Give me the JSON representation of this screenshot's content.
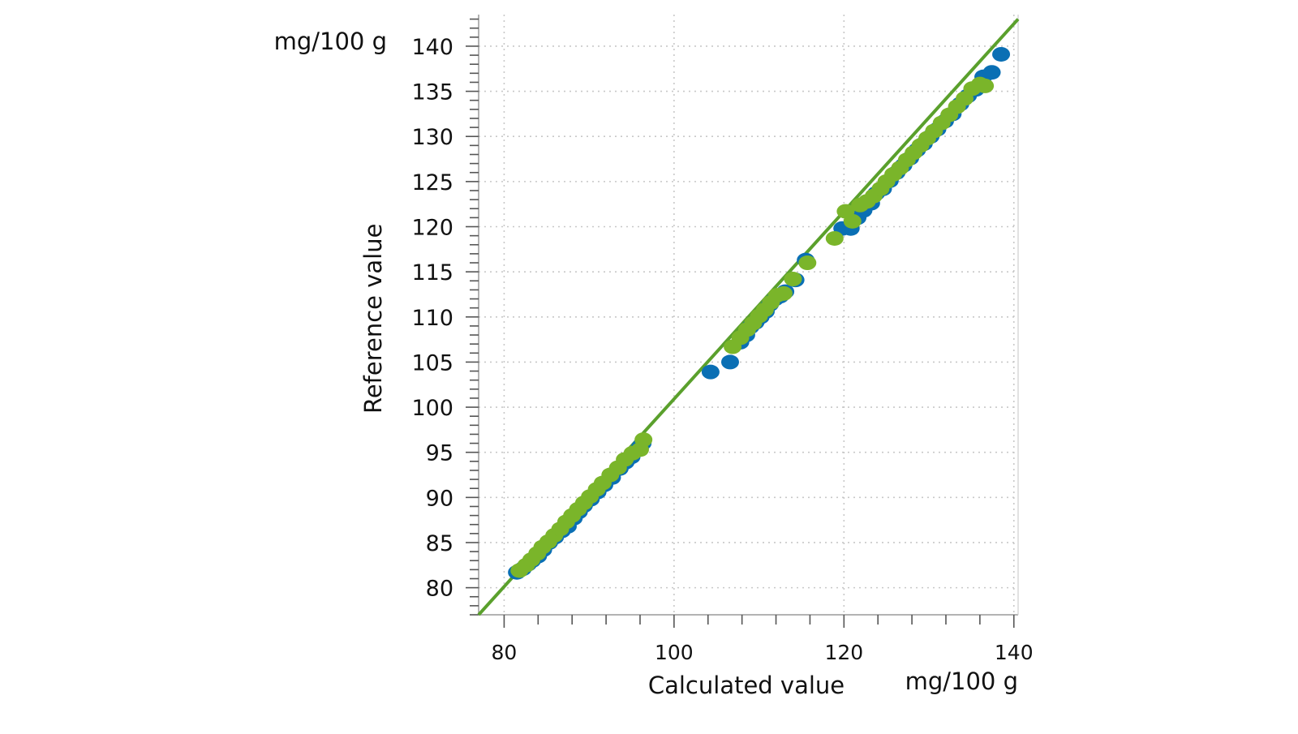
{
  "chart_data": {
    "type": "scatter",
    "title": "",
    "xlabel": "Calculated value",
    "ylabel": "Reference value",
    "x_unit": "mg/100 g",
    "y_unit": "mg/100 g",
    "xlim": [
      77,
      140.5
    ],
    "ylim": [
      77,
      143.5
    ],
    "x_ticks": [
      80,
      100,
      120,
      140
    ],
    "y_ticks": [
      80,
      85,
      90,
      95,
      100,
      105,
      110,
      115,
      120,
      125,
      130,
      135,
      140
    ],
    "grid": true,
    "legend": "none",
    "colors": {
      "calibration": "#0a6fb4",
      "validation": "#7ab52a",
      "fit_line": "#5aa02c",
      "grid": "#c8c8c8",
      "axis": "#9a9a9a"
    },
    "fit_line": {
      "from": [
        77,
        77
      ],
      "to": [
        140.5,
        143
      ]
    },
    "series": [
      {
        "points": [
          [
            81.5,
            81.7
          ],
          [
            82.2,
            82.1
          ],
          [
            82.8,
            82.6
          ],
          [
            83.3,
            83.0
          ],
          [
            84.0,
            83.5
          ],
          [
            84.6,
            84.2
          ],
          [
            85.3,
            85.0
          ],
          [
            86.0,
            85.6
          ],
          [
            86.8,
            86.3
          ],
          [
            87.5,
            86.8
          ],
          [
            88.2,
            87.7
          ],
          [
            88.8,
            88.4
          ],
          [
            89.4,
            89.1
          ],
          [
            90.2,
            89.8
          ],
          [
            91.0,
            90.6
          ],
          [
            91.8,
            91.4
          ],
          [
            92.7,
            92.2
          ],
          [
            93.6,
            93.2
          ],
          [
            94.3,
            93.9
          ],
          [
            95.0,
            94.5
          ],
          [
            96.0,
            95.6
          ],
          [
            96.3,
            96.0
          ],
          [
            104.3,
            103.9
          ],
          [
            106.6,
            105.0
          ],
          [
            107.8,
            107.2
          ],
          [
            108.5,
            108.0
          ],
          [
            109.0,
            108.9
          ],
          [
            109.6,
            109.4
          ],
          [
            110.2,
            110.0
          ],
          [
            110.8,
            110.6
          ],
          [
            111.3,
            111.4
          ],
          [
            111.9,
            112.0
          ],
          [
            112.5,
            112.3
          ],
          [
            113.1,
            112.8
          ],
          [
            114.3,
            114.1
          ],
          [
            115.5,
            116.3
          ],
          [
            119.8,
            119.8
          ],
          [
            120.8,
            119.8
          ],
          [
            121.6,
            121.0
          ],
          [
            122.3,
            121.8
          ],
          [
            123.2,
            122.6
          ],
          [
            123.8,
            123.7
          ],
          [
            124.6,
            124.2
          ],
          [
            125.4,
            125.1
          ],
          [
            126.2,
            126.0
          ],
          [
            127.0,
            126.8
          ],
          [
            127.8,
            127.6
          ],
          [
            128.6,
            128.5
          ],
          [
            129.4,
            129.2
          ],
          [
            130.2,
            130.0
          ],
          [
            131.0,
            130.8
          ],
          [
            131.9,
            131.7
          ],
          [
            132.8,
            132.5
          ],
          [
            133.7,
            133.6
          ],
          [
            134.6,
            134.5
          ],
          [
            135.5,
            135.2
          ],
          [
            136.4,
            136.6
          ],
          [
            137.4,
            137.1
          ],
          [
            138.5,
            139.1
          ]
        ]
      },
      {
        "points": [
          [
            81.8,
            81.9
          ],
          [
            82.6,
            82.5
          ],
          [
            83.2,
            83.1
          ],
          [
            83.9,
            83.8
          ],
          [
            84.5,
            84.5
          ],
          [
            85.2,
            85.1
          ],
          [
            85.9,
            85.8
          ],
          [
            86.6,
            86.5
          ],
          [
            87.3,
            87.3
          ],
          [
            88.0,
            88.0
          ],
          [
            88.7,
            88.7
          ],
          [
            89.4,
            89.4
          ],
          [
            90.1,
            90.1
          ],
          [
            90.9,
            90.9
          ],
          [
            91.6,
            91.6
          ],
          [
            92.5,
            92.5
          ],
          [
            93.4,
            93.3
          ],
          [
            94.2,
            94.2
          ],
          [
            95.1,
            94.9
          ],
          [
            96.0,
            95.3
          ],
          [
            96.4,
            96.4
          ],
          [
            106.9,
            106.7
          ],
          [
            107.8,
            107.7
          ],
          [
            108.6,
            108.6
          ],
          [
            109.3,
            109.3
          ],
          [
            110.0,
            110.1
          ],
          [
            110.7,
            110.8
          ],
          [
            111.4,
            111.6
          ],
          [
            112.1,
            112.4
          ],
          [
            112.9,
            112.6
          ],
          [
            114.0,
            114.2
          ],
          [
            115.7,
            116.0
          ],
          [
            118.9,
            118.7
          ],
          [
            120.2,
            121.7
          ],
          [
            121.0,
            120.6
          ],
          [
            121.9,
            122.4
          ],
          [
            122.7,
            122.8
          ],
          [
            123.5,
            123.4
          ],
          [
            124.3,
            124.2
          ],
          [
            125.0,
            125.0
          ],
          [
            125.8,
            125.8
          ],
          [
            126.6,
            126.5
          ],
          [
            127.4,
            127.4
          ],
          [
            128.2,
            128.2
          ],
          [
            129.0,
            129.0
          ],
          [
            129.8,
            129.8
          ],
          [
            130.6,
            130.6
          ],
          [
            131.5,
            131.5
          ],
          [
            132.4,
            132.4
          ],
          [
            133.3,
            133.3
          ],
          [
            134.2,
            134.2
          ],
          [
            135.1,
            135.3
          ],
          [
            136.0,
            135.8
          ],
          [
            136.6,
            135.6
          ]
        ]
      }
    ]
  }
}
